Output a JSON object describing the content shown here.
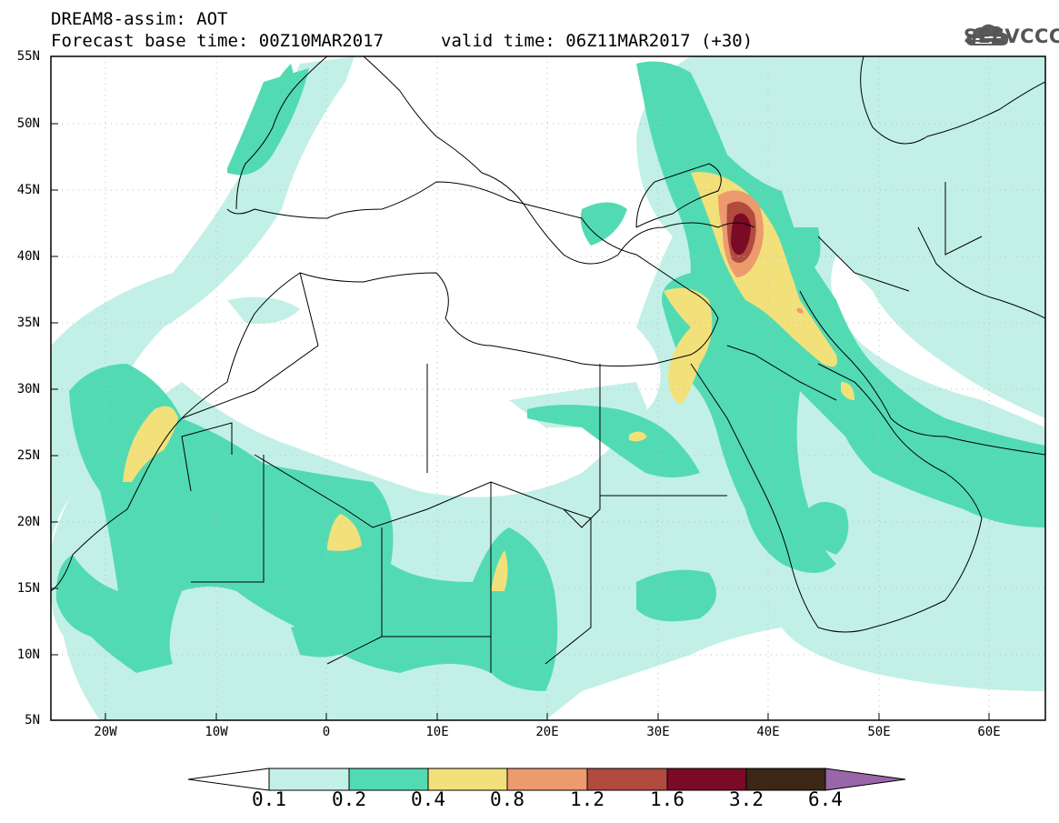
{
  "title": {
    "line1": "DREAM8-assim: AOT",
    "line2": "Forecast base time: 00Z10MAR2017",
    "line3": "valid time: 06Z11MAR2017 (+30)"
  },
  "logo": {
    "text": "SEEVCCC",
    "icon": "cloud-icon"
  },
  "map": {
    "lat_labels": [
      "55N",
      "50N",
      "45N",
      "40N",
      "35N",
      "30N",
      "25N",
      "20N",
      "15N",
      "10N",
      "5N"
    ],
    "lon_labels": [
      "20W",
      "10W",
      "0",
      "10E",
      "20E",
      "30E",
      "40E",
      "50E",
      "60E"
    ],
    "extent": {
      "lon_min": -25,
      "lon_max": 65,
      "lat_min": 5,
      "lat_max": 55
    }
  },
  "colorbar": {
    "labels": [
      "0.1",
      "0.2",
      "0.4",
      "0.8",
      "1.2",
      "1.6",
      "3.2",
      "6.4"
    ],
    "colors": [
      "#ffffff",
      "#c2f0e6",
      "#52dbb3",
      "#f2e17a",
      "#ec9a6e",
      "#b04b3e",
      "#7a0a26",
      "#3c2615",
      "#9966aa"
    ]
  }
}
